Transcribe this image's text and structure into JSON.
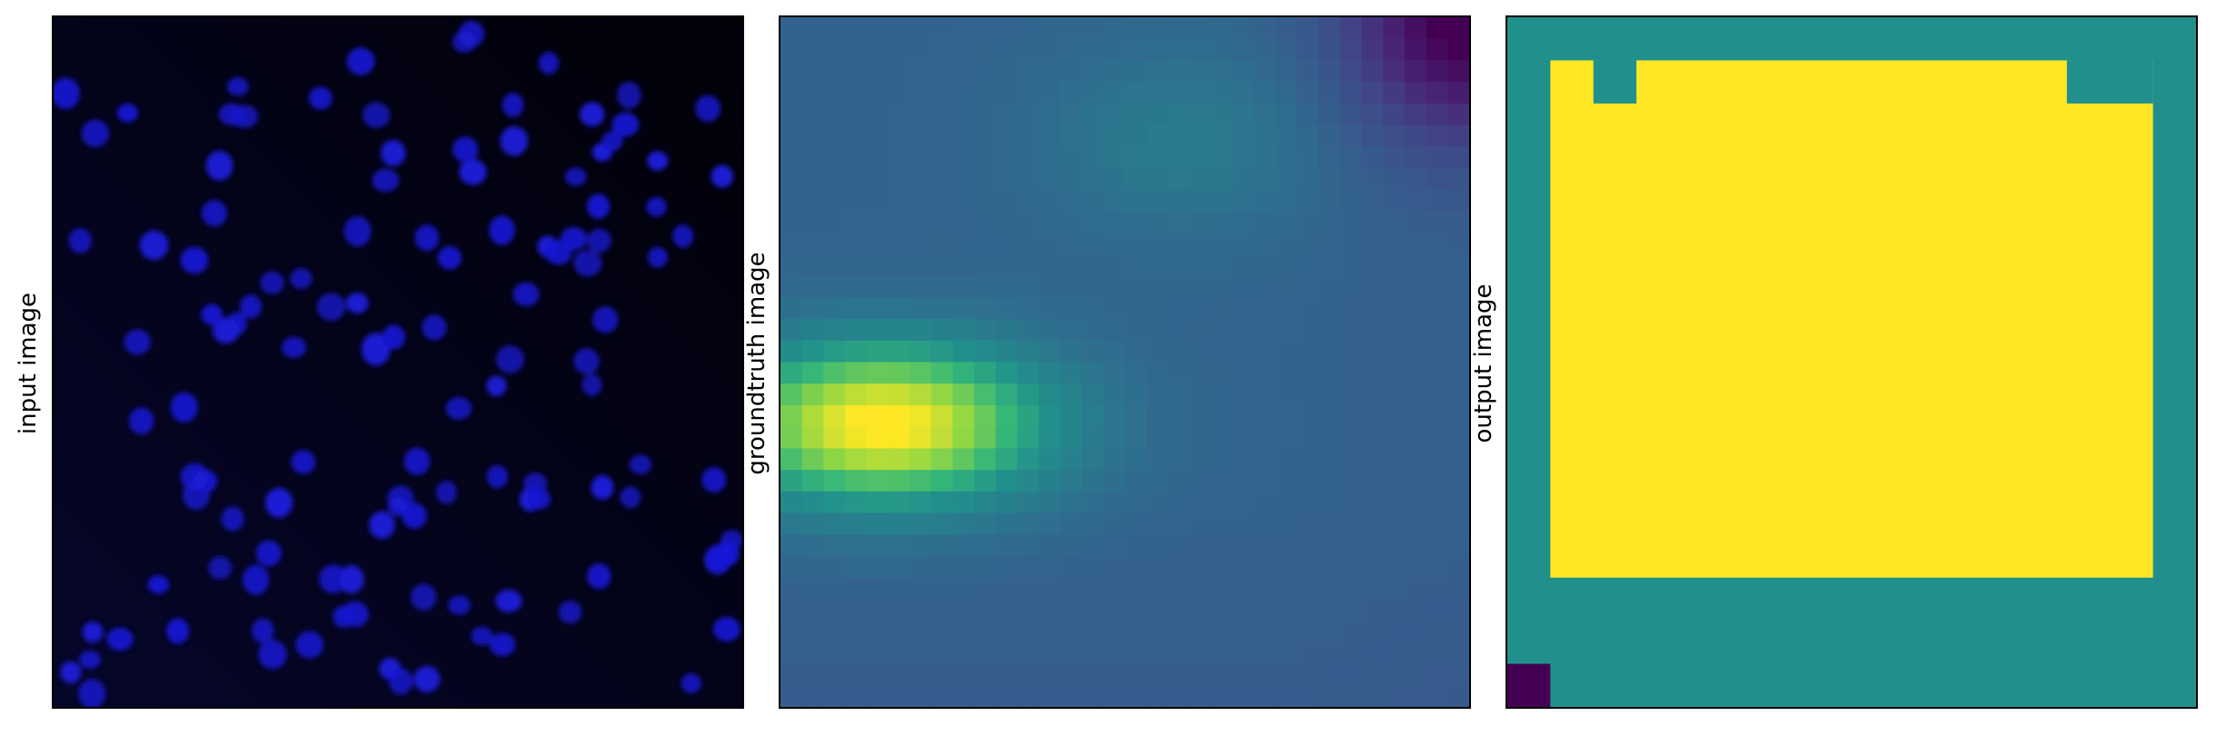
{
  "panels": [
    {
      "ylabel": "input image",
      "content": "blue fluorescence microscopy image of scattered cell nuclei on a dark background"
    },
    {
      "ylabel": "groundtruth image",
      "content": "viridis heatmap, bright yellow blob left of centre fading to teal and purple toward the top-right corner"
    },
    {
      "ylabel": "output image",
      "content": "viridis segmentation map: yellow square region on teal background with a purple corner pixel"
    }
  ],
  "colors": {
    "input_background": "#04041e",
    "nucleus": "#1a1ad6",
    "viridis_purple": "#440154",
    "viridis_blue": "#3b528b",
    "viridis_teal": "#21908d",
    "viridis_green": "#5ec962",
    "viridis_yellow": "#fde725"
  }
}
